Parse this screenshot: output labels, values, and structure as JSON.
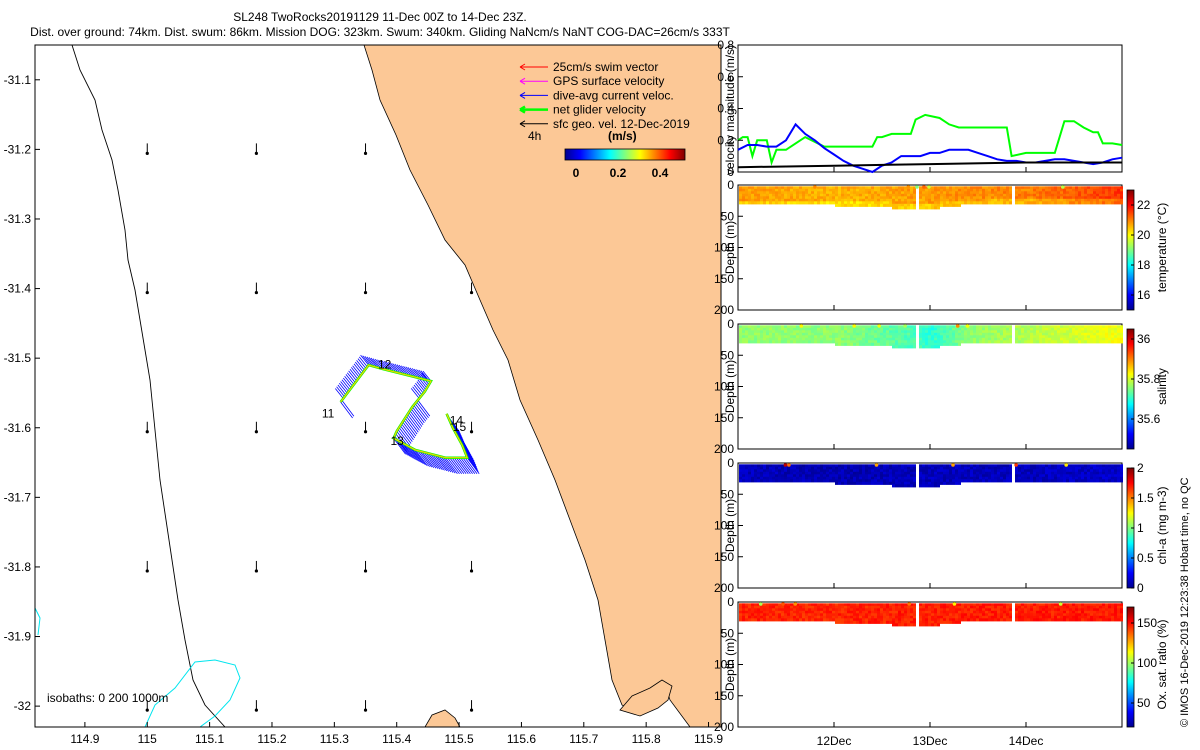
{
  "header": {
    "line1": "SL248 TwoRocks20191129 11-Dec 00Z to 14-Dec 23Z.",
    "line2": "Dist. over ground: 74km. Dist. swum: 86km. Mission DOG: 323km. Swum: 340km. Gliding NaNcm/s NaNT COG-DAC=26cm/s 333T"
  },
  "legend": {
    "items": [
      {
        "label": "25cm/s swim vector",
        "color": "#ff0000"
      },
      {
        "label": "GPS surface velocity",
        "color": "#ff00ff"
      },
      {
        "label": "dive-avg current veloc.",
        "color": "#0000ff"
      },
      {
        "label": "net glider velocity",
        "color": "#00ff00"
      },
      {
        "label": "sfc geo. vel. 12-Dec-2019",
        "color": "#000000"
      }
    ],
    "time_mark": "4h",
    "unit": "(m/s)",
    "colorbar_ticks": [
      "0",
      "0.2",
      "0.4"
    ]
  },
  "isobaths_label": "isobaths: 0   200  1000m",
  "watermark": "© IMOS 16-Dec-2019 12:23:38 Hobart time, no QC",
  "colors": {
    "land": "#fcc896",
    "isobath200": "#00e5ee",
    "track": "#0000ff",
    "net": "#00ff00"
  },
  "chart_data": [
    {
      "type": "map",
      "xlim": [
        114.82,
        115.92
      ],
      "ylim": [
        -32.03,
        -31.05
      ],
      "xticks": [
        "114.9",
        "115",
        "115.1",
        "115.2",
        "115.3",
        "115.4",
        "115.5",
        "115.6",
        "115.7",
        "115.8",
        "115.9"
      ],
      "yticks": [
        "-31.1",
        "-31.2",
        "-31.3",
        "-31.4",
        "-31.5",
        "-31.6",
        "-31.7",
        "-31.8",
        "-31.9",
        "-32"
      ],
      "day_labels": [
        {
          "text": "11",
          "lon": 115.28,
          "lat": -31.585
        },
        {
          "text": "12",
          "lon": 115.37,
          "lat": -31.515
        },
        {
          "text": "13",
          "lon": 115.39,
          "lat": -31.625
        },
        {
          "text": "14",
          "lon": 115.485,
          "lat": -31.595
        },
        {
          "text": "15",
          "lon": 115.49,
          "lat": -31.605
        }
      ],
      "track": [
        {
          "lon": 115.31,
          "lat": -31.563
        },
        {
          "lon": 115.355,
          "lat": -31.51
        },
        {
          "lon": 115.375,
          "lat": -31.515
        },
        {
          "lon": 115.455,
          "lat": -31.533
        },
        {
          "lon": 115.445,
          "lat": -31.548
        },
        {
          "lon": 115.425,
          "lat": -31.57
        },
        {
          "lon": 115.4,
          "lat": -31.605
        },
        {
          "lon": 115.395,
          "lat": -31.615
        },
        {
          "lon": 115.43,
          "lat": -31.632
        },
        {
          "lon": 115.478,
          "lat": -31.643
        },
        {
          "lon": 115.513,
          "lat": -31.643
        },
        {
          "lon": 115.505,
          "lat": -31.625
        },
        {
          "lon": 115.49,
          "lat": -31.6
        },
        {
          "lon": 115.48,
          "lat": -31.58
        }
      ]
    },
    {
      "type": "line",
      "title": "",
      "xlabel": "",
      "ylabel": "velocity magnitude (m/s)",
      "xlim": [
        11.0,
        15.0
      ],
      "ylim": [
        0,
        0.8
      ],
      "yticks": [
        "0",
        "0.2",
        "0.4",
        "0.6",
        "0.8"
      ],
      "series": [
        {
          "name": "net glider velocity",
          "color": "#00ff00",
          "x": [
            11.0,
            11.05,
            11.1,
            11.15,
            11.2,
            11.3,
            11.35,
            11.4,
            11.5,
            11.6,
            11.7,
            11.9,
            12.2,
            12.4,
            12.45,
            12.5,
            12.6,
            12.8,
            12.85,
            12.95,
            13.1,
            13.15,
            13.2,
            13.3,
            13.5,
            13.8,
            13.85,
            14.0,
            14.3,
            14.4,
            14.5,
            14.6,
            14.7,
            14.75,
            14.8,
            14.9,
            15.0
          ],
          "values": [
            0.2,
            0.22,
            0.22,
            0.1,
            0.2,
            0.2,
            0.06,
            0.14,
            0.14,
            0.18,
            0.22,
            0.16,
            0.16,
            0.16,
            0.22,
            0.22,
            0.24,
            0.24,
            0.33,
            0.36,
            0.34,
            0.32,
            0.3,
            0.28,
            0.28,
            0.28,
            0.1,
            0.12,
            0.12,
            0.32,
            0.32,
            0.28,
            0.25,
            0.25,
            0.18,
            0.18,
            0.17
          ]
        },
        {
          "name": "dive-avg current veloc.",
          "color": "#0000ff",
          "x": [
            11.0,
            11.1,
            11.2,
            11.3,
            11.4,
            11.5,
            11.6,
            11.7,
            11.8,
            11.9,
            12.0,
            12.1,
            12.2,
            12.3,
            12.4,
            12.5,
            12.6,
            12.7,
            12.8,
            12.9,
            13.0,
            13.1,
            13.2,
            13.3,
            13.4,
            13.5,
            13.6,
            13.7,
            13.8,
            13.9,
            14.0,
            14.1,
            14.2,
            14.3,
            14.4,
            14.5,
            14.6,
            14.7,
            14.8,
            14.9,
            15.0
          ],
          "values": [
            0.14,
            0.17,
            0.17,
            0.16,
            0.16,
            0.2,
            0.3,
            0.24,
            0.2,
            0.15,
            0.11,
            0.07,
            0.04,
            0.02,
            0.0,
            0.04,
            0.06,
            0.1,
            0.1,
            0.1,
            0.12,
            0.12,
            0.14,
            0.14,
            0.14,
            0.12,
            0.1,
            0.08,
            0.07,
            0.07,
            0.06,
            0.06,
            0.07,
            0.08,
            0.08,
            0.07,
            0.06,
            0.05,
            0.06,
            0.08,
            0.09
          ]
        },
        {
          "name": "sfc geo. vel.",
          "color": "#000000",
          "x": [
            11.0,
            12.0,
            13.0,
            14.0,
            15.0
          ],
          "values": [
            0.03,
            0.04,
            0.05,
            0.06,
            0.06
          ]
        }
      ]
    },
    {
      "type": "heatmap",
      "ylabel": "Depth (m)",
      "cbar_label": "temperature (°C)",
      "ylim": [
        200,
        0
      ],
      "yticks": [
        "0",
        "50",
        "100",
        "150",
        "200"
      ],
      "clim": [
        15,
        23
      ],
      "cticks": [
        "16",
        "18",
        "20",
        "22"
      ],
      "xlim": [
        11.0,
        15.0
      ],
      "segments": [
        [
          11.0,
          11.8
        ],
        [
          11.82,
          12.85
        ],
        [
          12.88,
          13.85
        ],
        [
          13.88,
          15.0
        ]
      ],
      "depth_profile": {
        "x": [
          11.0,
          12.0,
          12.5,
          12.8,
          13.0,
          13.3,
          13.6,
          14.0,
          15.0
        ],
        "max_depth": [
          30,
          30,
          32,
          38,
          36,
          30,
          30,
          28,
          26
        ]
      },
      "value_profile": {
        "x": [
          11.0,
          12.0,
          13.0,
          14.0,
          15.0
        ],
        "values": [
          20.8,
          20.6,
          20.8,
          21.0,
          21.6
        ]
      }
    },
    {
      "type": "heatmap",
      "ylabel": "Depth (m)",
      "cbar_label": "salinity",
      "ylim": [
        200,
        0
      ],
      "yticks": [
        "0",
        "50",
        "100",
        "150",
        "200"
      ],
      "clim": [
        35.45,
        36.05
      ],
      "cticks": [
        "35.6",
        "35.8",
        "36"
      ],
      "xlim": [
        11.0,
        15.0
      ],
      "segments": [
        [
          11.0,
          11.8
        ],
        [
          11.82,
          12.85
        ],
        [
          12.88,
          13.85
        ],
        [
          13.88,
          15.0
        ]
      ],
      "depth_profile": {
        "x": [
          11.0,
          12.0,
          12.5,
          12.8,
          13.0,
          13.3,
          13.6,
          14.0,
          15.0
        ],
        "max_depth": [
          30,
          30,
          32,
          38,
          36,
          30,
          30,
          28,
          26
        ]
      },
      "value_profile": {
        "x": [
          11.0,
          12.0,
          12.8,
          13.0,
          13.4,
          14.0,
          15.0
        ],
        "values": [
          35.76,
          35.76,
          35.72,
          35.7,
          35.76,
          35.78,
          35.82
        ]
      }
    },
    {
      "type": "heatmap",
      "ylabel": "Depth (m)",
      "cbar_label": "chl-a (mg m-3)",
      "ylim": [
        200,
        0
      ],
      "yticks": [
        "0",
        "50",
        "100",
        "150",
        "200"
      ],
      "clim": [
        0,
        2
      ],
      "cticks": [
        "0",
        "0.5",
        "1",
        "1.5",
        "2"
      ],
      "xlim": [
        11.0,
        15.0
      ],
      "segments": [
        [
          11.0,
          11.8
        ],
        [
          11.82,
          12.85
        ],
        [
          12.88,
          13.85
        ],
        [
          13.88,
          15.0
        ]
      ],
      "depth_profile": {
        "x": [
          11.0,
          12.0,
          12.5,
          12.8,
          13.0,
          13.3,
          13.6,
          14.0,
          15.0
        ],
        "max_depth": [
          30,
          30,
          32,
          38,
          36,
          30,
          30,
          28,
          26
        ]
      },
      "value_profile": {
        "x": [
          11.0,
          12.0,
          13.0,
          14.0,
          15.0
        ],
        "values": [
          0.12,
          0.1,
          0.12,
          0.12,
          0.14
        ]
      }
    },
    {
      "type": "heatmap",
      "ylabel": "Depth (m)",
      "cbar_label": "Ox. sat. ratio (%)",
      "ylim": [
        200,
        0
      ],
      "yticks": [
        "0",
        "50",
        "100",
        "150",
        "200"
      ],
      "clim": [
        20,
        170
      ],
      "cticks": [
        "50",
        "100",
        "150"
      ],
      "xlim": [
        11.0,
        15.0
      ],
      "xticks": [
        {
          "value": 12.0,
          "label": "12Dec"
        },
        {
          "value": 13.0,
          "label": "13Dec"
        },
        {
          "value": 14.0,
          "label": "14Dec"
        }
      ],
      "segments": [
        [
          11.0,
          11.8
        ],
        [
          11.82,
          12.85
        ],
        [
          12.88,
          13.85
        ],
        [
          13.88,
          15.0
        ]
      ],
      "depth_profile": {
        "x": [
          11.0,
          12.0,
          12.5,
          12.8,
          13.0,
          13.3,
          13.6,
          14.0,
          15.0
        ],
        "max_depth": [
          30,
          30,
          32,
          38,
          36,
          30,
          30,
          28,
          26
        ]
      },
      "value_profile": {
        "x": [
          11.0,
          12.0,
          13.0,
          14.0,
          15.0
        ],
        "values": [
          146,
          146,
          147,
          147,
          148
        ]
      }
    }
  ]
}
